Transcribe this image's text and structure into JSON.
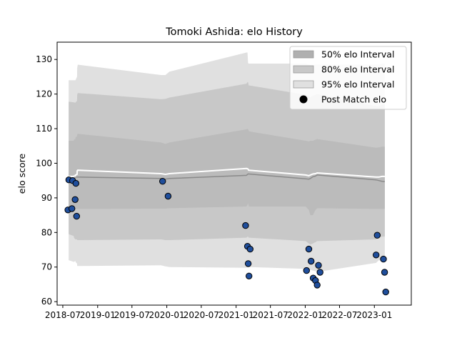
{
  "chart_data": {
    "type": "area",
    "title": "Tomoki Ashida: elo History",
    "xlabel": "",
    "ylabel": "elo score",
    "xlim": [
      "2018-06-01",
      "2023-07-15"
    ],
    "ylim": [
      59,
      135
    ],
    "x_ticks": [
      "2018-07",
      "2019-01",
      "2019-07",
      "2020-01",
      "2020-07",
      "2021-01",
      "2021-07",
      "2022-01",
      "2022-07",
      "2023-01"
    ],
    "y_ticks": [
      60,
      70,
      80,
      90,
      100,
      110,
      120,
      130
    ],
    "grid": false,
    "legend_position": "top-right",
    "legend": [
      {
        "label": "50% elo Interval",
        "color": "#b0b0b0"
      },
      {
        "label": "80% elo Interval",
        "color": "#c8c8c8"
      },
      {
        "label": "95% elo Interval",
        "color": "#e0e0e0"
      },
      {
        "label": "Post Match elo",
        "color": "#000000"
      }
    ],
    "colors": {
      "band50": "#b0b0b0",
      "band80": "#c8c8c8",
      "band95": "#e0e0e0",
      "median_line": "#8a8a8a",
      "mean_line": "#ffffff",
      "points": "#1f4e9c",
      "point_edge": "#000000"
    },
    "band_x": [
      "2018-08-01",
      "2018-08-28",
      "2018-08-29",
      "2018-09-05",
      "2018-09-06",
      "2018-09-14",
      "2018-09-15",
      "2018-09-18",
      "2019-12-01",
      "2019-12-25",
      "2020-01-15",
      "2021-02-25",
      "2021-03-02",
      "2021-03-05",
      "2021-03-08",
      "2021-03-10",
      "2022-01-03",
      "2022-01-20",
      "2022-01-28",
      "2022-02-10",
      "2022-02-24",
      "2022-03-05",
      "2023-01-10",
      "2023-01-25",
      "2023-02-10",
      "2023-02-25"
    ],
    "median": [
      96.2,
      96.1,
      96.1,
      96.0,
      96.0,
      96.0,
      96.0,
      96.0,
      95.6,
      95.4,
      95.6,
      96.5,
      96.8,
      96.9,
      96.9,
      96.9,
      95.5,
      95.4,
      95.6,
      96.1,
      96.3,
      96.6,
      95.2,
      95.0,
      94.8,
      94.7
    ],
    "mean": [
      96.2,
      96.2,
      96.3,
      96.3,
      96.6,
      96.8,
      97.8,
      98.0,
      97.0,
      96.8,
      97.0,
      98.5,
      98.4,
      98.3,
      98.0,
      98.0,
      96.6,
      96.4,
      96.6,
      96.9,
      97.0,
      97.2,
      96.0,
      96.0,
      96.2,
      96.2
    ],
    "p50_lo": [
      87.5,
      87.2,
      87.0,
      86.9,
      86.8,
      86.8,
      86.8,
      86.8,
      86.9,
      86.9,
      87.0,
      87.5,
      88.0,
      88.5,
      87.8,
      87.5,
      87.5,
      86.5,
      85.0,
      85.0,
      86.5,
      87.0,
      86.8,
      86.8,
      86.8,
      86.8
    ],
    "p50_hi": [
      106.5,
      106.5,
      106.8,
      107.0,
      107.5,
      107.8,
      108.3,
      108.5,
      106.0,
      105.6,
      106.0,
      109.8,
      110.0,
      109.8,
      109.5,
      109.2,
      106.5,
      106.3,
      106.5,
      106.5,
      106.8,
      107.0,
      104.5,
      104.6,
      104.8,
      104.8
    ],
    "p80_lo": [
      79.5,
      79.0,
      78.5,
      78.0,
      78.0,
      78.0,
      77.8,
      77.8,
      78.0,
      77.8,
      77.8,
      78.5,
      78.8,
      78.8,
      78.5,
      78.5,
      77.5,
      76.8,
      76.5,
      76.8,
      77.2,
      77.5,
      78.0,
      78.5,
      78.8,
      78.8
    ],
    "p80_hi": [
      117.8,
      117.6,
      117.6,
      117.5,
      117.6,
      118.0,
      119.8,
      120.3,
      118.5,
      118.6,
      119.0,
      123.0,
      123.5,
      123.5,
      122.5,
      122.5,
      119.8,
      119.5,
      119.0,
      119.5,
      119.8,
      120.0,
      116.5,
      116.5,
      117.0,
      117.0
    ],
    "p95_lo": [
      72.0,
      71.5,
      71.5,
      71.8,
      71.5,
      71.0,
      70.3,
      70.3,
      70.5,
      70.2,
      70.0,
      69.8,
      70.0,
      70.0,
      70.0,
      70.0,
      69.5,
      69.3,
      69.2,
      69.0,
      68.8,
      68.6,
      71.2,
      72.0,
      72.0,
      72.0
    ],
    "p95_hi": [
      124.0,
      124.0,
      124.0,
      124.0,
      124.0,
      125.0,
      127.5,
      128.5,
      125.5,
      125.5,
      126.5,
      132.0,
      132.0,
      129.0,
      128.8,
      128.8,
      128.8,
      128.5,
      128.3,
      128.3,
      128.5,
      128.5,
      128.5,
      128.5,
      128.8,
      128.8
    ],
    "points": [
      {
        "x": "2018-07-28",
        "y": 86.5
      },
      {
        "x": "2018-08-02",
        "y": 95.2
      },
      {
        "x": "2018-08-18",
        "y": 86.9
      },
      {
        "x": "2018-08-22",
        "y": 95.0
      },
      {
        "x": "2018-09-04",
        "y": 89.5
      },
      {
        "x": "2018-09-08",
        "y": 94.2
      },
      {
        "x": "2018-09-12",
        "y": 84.7
      },
      {
        "x": "2019-12-10",
        "y": 94.8
      },
      {
        "x": "2020-01-08",
        "y": 90.5
      },
      {
        "x": "2021-02-20",
        "y": 82.0
      },
      {
        "x": "2021-03-02",
        "y": 76.0
      },
      {
        "x": "2021-03-06",
        "y": 71.0
      },
      {
        "x": "2021-03-10",
        "y": 67.4
      },
      {
        "x": "2021-03-16",
        "y": 75.2
      },
      {
        "x": "2022-01-08",
        "y": 69.0
      },
      {
        "x": "2022-01-20",
        "y": 75.2
      },
      {
        "x": "2022-02-01",
        "y": 71.7
      },
      {
        "x": "2022-02-12",
        "y": 66.8
      },
      {
        "x": "2022-02-24",
        "y": 66.1
      },
      {
        "x": "2022-03-05",
        "y": 64.8
      },
      {
        "x": "2022-03-12",
        "y": 70.5
      },
      {
        "x": "2022-03-20",
        "y": 68.5
      },
      {
        "x": "2023-01-10",
        "y": 73.5
      },
      {
        "x": "2023-01-16",
        "y": 79.2
      },
      {
        "x": "2023-02-18",
        "y": 72.3
      },
      {
        "x": "2023-02-24",
        "y": 68.5
      },
      {
        "x": "2023-03-02",
        "y": 62.8
      }
    ]
  }
}
